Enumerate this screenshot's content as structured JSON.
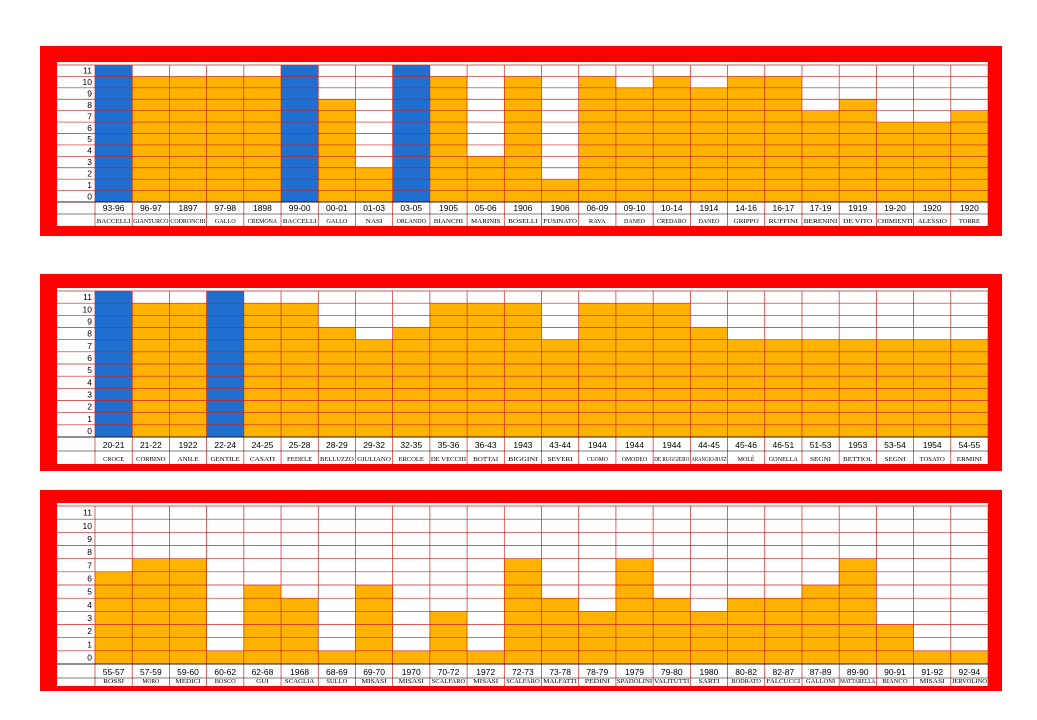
{
  "colors": {
    "frame": "#ff0000",
    "grid": "#cc2222",
    "bar_orange": "#ffb300",
    "bar_blue": "#1f6fd1",
    "background": "#ffffff"
  },
  "chart_data": [
    {
      "type": "bar",
      "ylim": [
        0,
        11
      ],
      "y_ticks": [
        "0",
        "1",
        "2",
        "3",
        "4",
        "5",
        "6",
        "7",
        "8",
        "9",
        "10",
        "11"
      ],
      "grid": true,
      "categories": [
        "93-96",
        "96-97",
        "1897",
        "97-98",
        "1898",
        "99-00",
        "00-01",
        "01-03",
        "03-05",
        "1905",
        "05-06",
        "1906",
        "1906",
        "06-09",
        "09-10",
        "10-14",
        "1914",
        "14-16",
        "16-17",
        "17-19",
        "1919",
        "19-20",
        "1920",
        "1920"
      ],
      "names": [
        "BACCELLI",
        "GIANTURCO",
        "CODRONCHI",
        "GALLO",
        "CREMONA",
        "BACCELLI",
        "GALLO",
        "NASI",
        "ORLANDO",
        "BIANCHI",
        "MARINIS",
        "BOSELLI",
        "FUSINATO",
        "RAVA",
        "DANEO",
        "CREDARO",
        "DANEO",
        "GRIPPO",
        "RUFFINI",
        "BERENINI",
        "DE VITO",
        "CHIMIENTI",
        "ALESSIO",
        "TORRE"
      ],
      "values": [
        11,
        10,
        10,
        10,
        10,
        11,
        8,
        2,
        11,
        10,
        3,
        10,
        1,
        10,
        9,
        10,
        9,
        10,
        10,
        7,
        8,
        6,
        6,
        7
      ],
      "highlight": [
        "blue",
        "orange",
        "orange",
        "orange",
        "orange",
        "blue",
        "orange",
        "orange",
        "blue",
        "orange",
        "orange",
        "orange",
        "orange",
        "orange",
        "orange",
        "orange",
        "orange",
        "orange",
        "orange",
        "orange",
        "orange",
        "orange",
        "orange",
        "orange"
      ]
    },
    {
      "type": "bar",
      "ylim": [
        0,
        11
      ],
      "y_ticks": [
        "0",
        "1",
        "2",
        "3",
        "4",
        "5",
        "6",
        "7",
        "8",
        "9",
        "10",
        "11"
      ],
      "grid": true,
      "categories": [
        "20-21",
        "21-22",
        "1922",
        "22-24",
        "24-25",
        "25-28",
        "28-29",
        "29-32",
        "32-35",
        "35-36",
        "36-43",
        "1943",
        "43-44",
        "1944",
        "1944",
        "1944",
        "44-45",
        "45-46",
        "46-51",
        "51-53",
        "1953",
        "53-54",
        "1954",
        "54-55"
      ],
      "names": [
        "CROCE",
        "CORBINO",
        "ANILE",
        "GENTILE",
        "CASATI",
        "FEDELE",
        "BELLUZZO",
        "GIULIANO",
        "ERCOLE",
        "DE VECCHI",
        "BOTTAI",
        "BIGGINI",
        "SEVERI",
        "CUOMO",
        "OMODEO",
        "DE RUGGIERO",
        "ARANGIO-RUIZ",
        "MOLÈ",
        "GONELLA",
        "SEGNI",
        "BETTIOL",
        "SEGNI",
        "TOSATO",
        "ERMINI"
      ],
      "values": [
        11,
        10,
        10,
        11,
        10,
        10,
        8,
        7,
        8,
        10,
        10,
        10,
        7,
        10,
        10,
        10,
        8,
        7,
        7,
        7,
        7,
        7,
        7,
        7
      ],
      "highlight": [
        "blue",
        "orange",
        "orange",
        "blue",
        "orange",
        "orange",
        "orange",
        "orange",
        "orange",
        "orange",
        "orange",
        "orange",
        "orange",
        "orange",
        "orange",
        "orange",
        "orange",
        "orange",
        "orange",
        "orange",
        "orange",
        "orange",
        "orange",
        "orange"
      ]
    },
    {
      "type": "bar",
      "ylim": [
        0,
        11
      ],
      "y_ticks": [
        "0",
        "1",
        "2",
        "3",
        "4",
        "5",
        "6",
        "7",
        "8",
        "9",
        "10",
        "11"
      ],
      "grid": true,
      "categories": [
        "55-57",
        "57-59",
        "59-60",
        "60-62",
        "62-68",
        "1968",
        "68-69",
        "69-70",
        "1970",
        "70-72",
        "1972",
        "72-73",
        "73-78",
        "78-79",
        "1979",
        "79-80",
        "1980",
        "80-82",
        "82-87",
        "87-89",
        "89-90",
        "90-91",
        "91-92",
        "92-94"
      ],
      "names": [
        "ROSSI",
        "MORO",
        "MEDICI",
        "BOSCO",
        "GUI",
        "SCAGLIA",
        "SULLO",
        "MISASI",
        "MISASI",
        "SCALFARO",
        "MISASI",
        "SCALFARO",
        "MALFATTI",
        "PEDINI",
        "SPADOLINI",
        "VALITUTTI",
        "SARTI",
        "BODRATO",
        "FALCUCCI",
        "GALLONI",
        "MATTARELLA",
        "BIANCO",
        "MISASI",
        "JERVOLINO"
      ],
      "values": [
        6,
        7,
        7,
        0,
        5,
        4,
        0,
        5,
        0,
        3,
        0,
        7,
        4,
        3,
        7,
        4,
        3,
        4,
        4,
        5,
        7,
        2,
        0,
        0
      ],
      "highlight": [
        "orange",
        "orange",
        "orange",
        "orange",
        "orange",
        "orange",
        "orange",
        "orange",
        "orange",
        "orange",
        "orange",
        "orange",
        "orange",
        "orange",
        "orange",
        "orange",
        "orange",
        "orange",
        "orange",
        "orange",
        "orange",
        "orange",
        "orange",
        "orange"
      ]
    }
  ]
}
